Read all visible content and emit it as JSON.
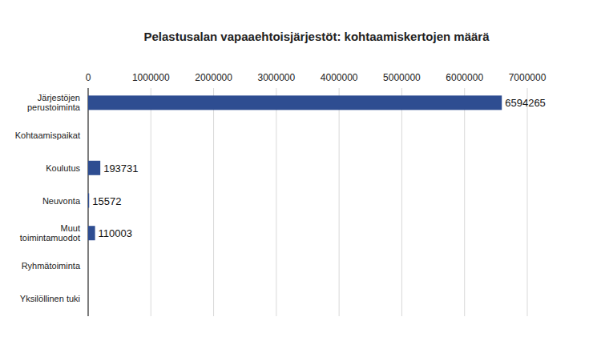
{
  "chart_data": {
    "type": "bar",
    "title": "Pelastusalan vapaaehtoisjärjestöt: kohtaamiskertojen määrä",
    "orientation": "horizontal",
    "categories": [
      "Järjestöjen perustoiminta",
      "Kohtaamispaikat",
      "Koulutus",
      "Neuvonta",
      "Muut toimintamuodot",
      "Ryhmätoiminta",
      "Yksilöllinen tuki"
    ],
    "values": [
      6594265,
      null,
      193731,
      15572,
      110003,
      null,
      null
    ],
    "color": "#2e4d91",
    "xlim": [
      0,
      7000000
    ],
    "xticks": [
      0,
      1000000,
      2000000,
      3000000,
      4000000,
      5000000,
      6000000,
      7000000
    ],
    "grid": true,
    "data_labels": true
  }
}
